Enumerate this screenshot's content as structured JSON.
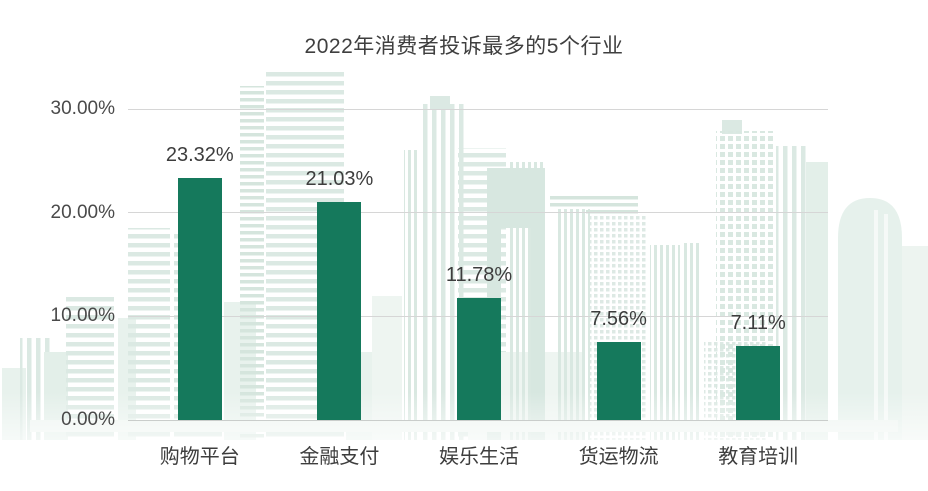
{
  "title": "2022年消费者投诉最多的5个行业",
  "colors": {
    "bar": "#15795c",
    "title_text": "#3f3f3f",
    "label_text": "#3d3d3d",
    "axis_text": "#4a4a4a",
    "gridline": "#d6d6d6",
    "skyline_mint": "#dbe9e3",
    "skyline_light": "#e8f2ed"
  },
  "chart_data": {
    "type": "bar",
    "title": "2022年消费者投诉最多的5个行业",
    "categories": [
      "购物平台",
      "金融支付",
      "娱乐生活",
      "货运物流",
      "教育培训"
    ],
    "values": [
      23.32,
      21.03,
      11.78,
      7.56,
      7.11
    ],
    "value_labels": [
      "23.32%",
      "21.03%",
      "11.78%",
      "7.56%",
      "7.11%"
    ],
    "yticks": [
      {
        "value": 30,
        "label": "30.00%"
      },
      {
        "value": 20,
        "label": "20.00%"
      },
      {
        "value": 10,
        "label": "10.00%"
      },
      {
        "value": 0,
        "label": "0.00%"
      }
    ],
    "ylim": [
      0,
      30
    ],
    "xlabel": "",
    "ylabel": "",
    "grid": true,
    "legend": "none",
    "background_motif": "city-skyline-watermark"
  }
}
